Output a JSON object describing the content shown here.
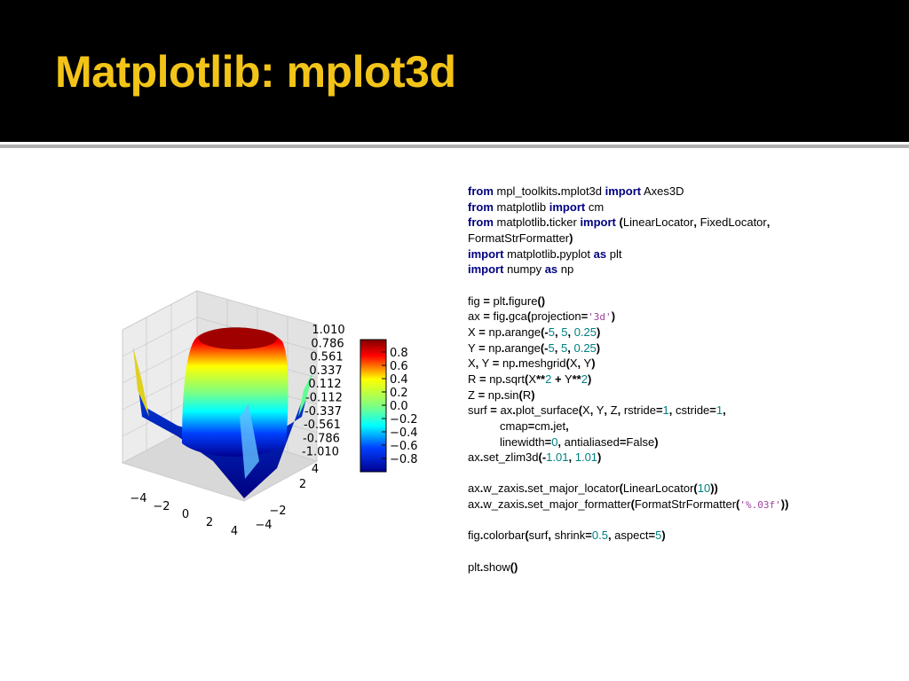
{
  "header": {
    "title": "Matplotlib: mplot3d"
  },
  "figure": {
    "z_ticks": [
      "1.010",
      "0.786",
      "0.561",
      "0.337",
      "0.112",
      "-0.112",
      "-0.337",
      "-0.561",
      "-0.786",
      "-1.010"
    ],
    "x_ticks": [
      "−4",
      "−2",
      "0",
      "2",
      "4"
    ],
    "y_ticks": [
      "4",
      "2",
      "−2",
      "−4"
    ],
    "colorbar": {
      "ticks": [
        "0.8",
        "0.6",
        "0.4",
        "0.2",
        "0.0",
        "−0.2",
        "−0.4",
        "−0.6",
        "−0.8"
      ]
    }
  },
  "code": {
    "lines": [
      {
        "segs": [
          [
            "from",
            "#000080"
          ],
          [
            " mpl_toolkits"
          ],
          [
            ".",
            "#000000"
          ],
          [
            "mplot3d "
          ],
          [
            "import",
            "#000080"
          ],
          [
            " Axes3D"
          ]
        ]
      },
      {
        "segs": [
          [
            "from",
            "#000080"
          ],
          [
            " matplotlib "
          ],
          [
            "import",
            "#000080"
          ],
          [
            " cm"
          ]
        ]
      },
      {
        "segs": [
          [
            "from",
            "#000080"
          ],
          [
            " matplotlib"
          ],
          [
            ".",
            "#000000"
          ],
          [
            "ticker "
          ],
          [
            "import",
            "#000080"
          ],
          [
            " "
          ],
          [
            "(",
            "#000000"
          ],
          [
            "LinearLocator"
          ],
          [
            ",",
            "#000000"
          ],
          [
            " FixedLocator"
          ],
          [
            ",",
            "#000000"
          ]
        ]
      },
      {
        "segs": [
          [
            "FormatStrFormatter"
          ],
          [
            ")",
            "#000000"
          ]
        ]
      },
      {
        "segs": [
          [
            "import",
            "#000080"
          ],
          [
            " matplotlib"
          ],
          [
            ".",
            "#000000"
          ],
          [
            "pyplot "
          ],
          [
            "as",
            "#000080"
          ],
          [
            " plt"
          ]
        ]
      },
      {
        "segs": [
          [
            "import",
            "#000080"
          ],
          [
            " numpy "
          ],
          [
            "as",
            "#000080"
          ],
          [
            " np"
          ]
        ]
      },
      {
        "segs": []
      },
      {
        "segs": [
          [
            "fig "
          ],
          [
            "=",
            "#000000"
          ],
          [
            " plt"
          ],
          [
            ".",
            "#000000"
          ],
          [
            "figure"
          ],
          [
            "()",
            "#000000"
          ]
        ]
      },
      {
        "segs": [
          [
            "ax "
          ],
          [
            "=",
            "#000000"
          ],
          [
            " fig"
          ],
          [
            ".",
            "#000000"
          ],
          [
            "gca"
          ],
          [
            "(",
            "#000000"
          ],
          [
            "projection"
          ],
          [
            "=",
            "#000000"
          ],
          [
            "'3d'",
            "#a040a0"
          ],
          [
            ")",
            "#000000"
          ]
        ]
      },
      {
        "segs": [
          [
            "X "
          ],
          [
            "=",
            "#000000"
          ],
          [
            " np"
          ],
          [
            ".",
            "#000000"
          ],
          [
            "arange"
          ],
          [
            "(-",
            "#000000"
          ],
          [
            "5",
            "#008080"
          ],
          [
            ",",
            "#000000"
          ],
          [
            " "
          ],
          [
            "5",
            "#008080"
          ],
          [
            ",",
            "#000000"
          ],
          [
            " "
          ],
          [
            "0.25",
            "#008080"
          ],
          [
            ")",
            "#000000"
          ]
        ]
      },
      {
        "segs": [
          [
            "Y "
          ],
          [
            "=",
            "#000000"
          ],
          [
            " np"
          ],
          [
            ".",
            "#000000"
          ],
          [
            "arange"
          ],
          [
            "(-",
            "#000000"
          ],
          [
            "5",
            "#008080"
          ],
          [
            ",",
            "#000000"
          ],
          [
            " "
          ],
          [
            "5",
            "#008080"
          ],
          [
            ",",
            "#000000"
          ],
          [
            " "
          ],
          [
            "0.25",
            "#008080"
          ],
          [
            ")",
            "#000000"
          ]
        ]
      },
      {
        "segs": [
          [
            "X"
          ],
          [
            ",",
            "#000000"
          ],
          [
            " Y "
          ],
          [
            "=",
            "#000000"
          ],
          [
            " np"
          ],
          [
            ".",
            "#000000"
          ],
          [
            "meshgrid"
          ],
          [
            "(",
            "#000000"
          ],
          [
            "X"
          ],
          [
            ",",
            "#000000"
          ],
          [
            " Y"
          ],
          [
            ")",
            "#000000"
          ]
        ]
      },
      {
        "segs": [
          [
            "R "
          ],
          [
            "=",
            "#000000"
          ],
          [
            " np"
          ],
          [
            ".",
            "#000000"
          ],
          [
            "sqrt"
          ],
          [
            "(",
            "#000000"
          ],
          [
            "X"
          ],
          [
            "**",
            "#000000"
          ],
          [
            "2",
            "#008080"
          ],
          [
            " "
          ],
          [
            "+",
            "#000000"
          ],
          [
            " Y"
          ],
          [
            "**",
            "#000000"
          ],
          [
            "2",
            "#008080"
          ],
          [
            ")",
            "#000000"
          ]
        ]
      },
      {
        "segs": [
          [
            "Z "
          ],
          [
            "=",
            "#000000"
          ],
          [
            " np"
          ],
          [
            ".",
            "#000000"
          ],
          [
            "sin"
          ],
          [
            "(",
            "#000000"
          ],
          [
            "R"
          ],
          [
            ")",
            "#000000"
          ]
        ]
      },
      {
        "segs": [
          [
            "surf "
          ],
          [
            "=",
            "#000000"
          ],
          [
            " ax"
          ],
          [
            ".",
            "#000000"
          ],
          [
            "plot_surface"
          ],
          [
            "(",
            "#000000"
          ],
          [
            "X"
          ],
          [
            ",",
            "#000000"
          ],
          [
            " Y"
          ],
          [
            ",",
            "#000000"
          ],
          [
            " Z"
          ],
          [
            ",",
            "#000000"
          ],
          [
            " rstride"
          ],
          [
            "=",
            "#000000"
          ],
          [
            "1",
            "#008080"
          ],
          [
            ",",
            "#000000"
          ],
          [
            " cstride"
          ],
          [
            "=",
            "#000000"
          ],
          [
            "1",
            "#008080"
          ],
          [
            ",",
            "#000000"
          ]
        ]
      },
      {
        "indent": 1,
        "segs": [
          [
            "cmap"
          ],
          [
            "=",
            "#000000"
          ],
          [
            "cm"
          ],
          [
            ".",
            "#000000"
          ],
          [
            "jet"
          ],
          [
            ",",
            "#000000"
          ]
        ]
      },
      {
        "indent": 1,
        "segs": [
          [
            "linewidth"
          ],
          [
            "=",
            "#000000"
          ],
          [
            "0",
            "#008080"
          ],
          [
            ",",
            "#000000"
          ],
          [
            " antialiased"
          ],
          [
            "=",
            "#000000"
          ],
          [
            "False"
          ],
          [
            ")",
            "#000000"
          ]
        ]
      },
      {
        "segs": [
          [
            "ax"
          ],
          [
            ".",
            "#000000"
          ],
          [
            "set_zlim3d"
          ],
          [
            "(-",
            "#000000"
          ],
          [
            "1.01",
            "#008080"
          ],
          [
            ",",
            "#000000"
          ],
          [
            " "
          ],
          [
            "1.01",
            "#008080"
          ],
          [
            ")",
            "#000000"
          ]
        ]
      },
      {
        "segs": []
      },
      {
        "segs": [
          [
            "ax"
          ],
          [
            ".",
            "#000000"
          ],
          [
            "w_zaxis"
          ],
          [
            ".",
            "#000000"
          ],
          [
            "set_major_locator"
          ],
          [
            "(",
            "#000000"
          ],
          [
            "LinearLocator"
          ],
          [
            "(",
            "#000000"
          ],
          [
            "10",
            "#008080"
          ],
          [
            "))",
            "#000000"
          ]
        ]
      },
      {
        "segs": [
          [
            "ax"
          ],
          [
            ".",
            "#000000"
          ],
          [
            "w_zaxis"
          ],
          [
            ".",
            "#000000"
          ],
          [
            "set_major_formatter"
          ],
          [
            "(",
            "#000000"
          ],
          [
            "FormatStrFormatter"
          ],
          [
            "(",
            "#000000"
          ],
          [
            "'%.03f'",
            "#a040a0"
          ],
          [
            "))",
            "#000000"
          ]
        ]
      },
      {
        "segs": []
      },
      {
        "segs": [
          [
            "fig"
          ],
          [
            ".",
            "#000000"
          ],
          [
            "colorbar"
          ],
          [
            "(",
            "#000000"
          ],
          [
            "surf"
          ],
          [
            ",",
            "#000000"
          ],
          [
            " shrink"
          ],
          [
            "=",
            "#000000"
          ],
          [
            "0.5",
            "#008080"
          ],
          [
            ",",
            "#000000"
          ],
          [
            " aspect"
          ],
          [
            "=",
            "#000000"
          ],
          [
            "5",
            "#008080"
          ],
          [
            ")",
            "#000000"
          ]
        ]
      },
      {
        "segs": []
      },
      {
        "segs": [
          [
            "plt"
          ],
          [
            ".",
            "#000000"
          ],
          [
            "show"
          ],
          [
            "()",
            "#000000"
          ]
        ]
      }
    ]
  }
}
